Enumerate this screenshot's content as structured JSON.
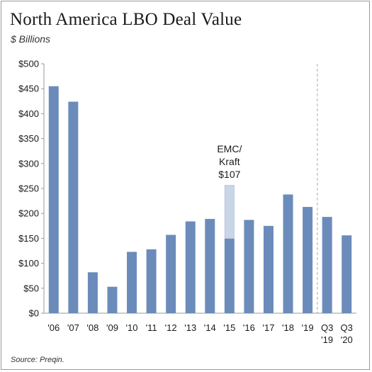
{
  "header": {
    "title": "North America LBO Deal Value",
    "subtitle": "$ Billions"
  },
  "footer": {
    "source": "Source: Preqin."
  },
  "colors": {
    "bar": "#6b8cba",
    "highlight": "#c9d6e8",
    "highlight_border": "#b7c6dc",
    "divider": "#aaaaaa",
    "axis": "#9a9a9a"
  },
  "chart_data": {
    "type": "bar",
    "categories": [
      "'06",
      "'07",
      "'08",
      "'09",
      "'10",
      "'11",
      "'12",
      "'13",
      "'14",
      "'15",
      "'16",
      "'17",
      "'18",
      "'19",
      "Q3 '19",
      "Q3 '20"
    ],
    "category_lines": [
      [
        "'06"
      ],
      [
        "'07"
      ],
      [
        "'08"
      ],
      [
        "'09"
      ],
      [
        "'10"
      ],
      [
        "'11"
      ],
      [
        "'12"
      ],
      [
        "'13"
      ],
      [
        "'14"
      ],
      [
        "'15"
      ],
      [
        "'16"
      ],
      [
        "'17"
      ],
      [
        "'18"
      ],
      [
        "'19"
      ],
      [
        "Q3",
        "'19"
      ],
      [
        "Q3",
        "'20"
      ]
    ],
    "values": [
      455,
      424,
      82,
      53,
      123,
      128,
      157,
      184,
      189,
      150,
      187,
      175,
      238,
      213,
      193,
      156
    ],
    "stacked_extra": {
      "category_index": 9,
      "value": 107
    },
    "annotation": {
      "lines": [
        "EMC/",
        "Kraft",
        "$107"
      ],
      "category_index": 9
    },
    "divider_after_index": 13,
    "y_ticks": [
      0,
      50,
      100,
      150,
      200,
      250,
      300,
      350,
      400,
      450,
      500
    ],
    "y_tick_labels": [
      "$0",
      "$50",
      "$100",
      "$150",
      "$200",
      "$250",
      "$300",
      "$350",
      "$400",
      "$450",
      "$500"
    ],
    "ylim": [
      0,
      500
    ],
    "grid": false,
    "legend": "none"
  }
}
